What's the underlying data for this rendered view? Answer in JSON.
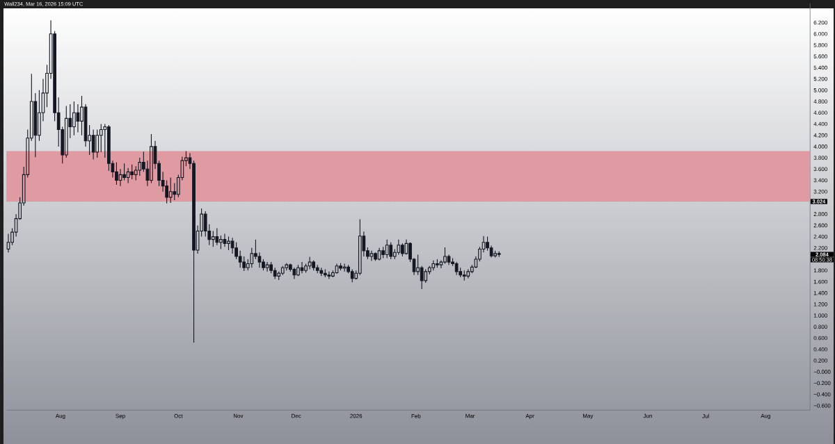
{
  "chart_data": {
    "type": "candlestick",
    "annotations": [
      "Wall234, Mar 16, 2026 15:09 UTC",
      "2.084",
      "08:50:38"
    ],
    "color": "#131722",
    "x": [
      "2025-07-05",
      "2025-07-07",
      "2025-07-09",
      "2025-07-11",
      "2025-07-13",
      "2025-07-15",
      "2025-07-17",
      "2025-07-19",
      "2025-07-21",
      "2025-07-23",
      "2025-07-25",
      "2025-07-27",
      "2025-07-29",
      "2025-07-31",
      "2025-08-02",
      "2025-08-04",
      "2025-08-06",
      "2025-08-08",
      "2025-08-10",
      "2025-08-12",
      "2025-08-14",
      "2025-08-16",
      "2025-08-18",
      "2025-08-20",
      "2025-08-22",
      "2025-08-24",
      "2025-08-26",
      "2025-08-28",
      "2025-08-30",
      "2025-09-01",
      "2025-09-03",
      "2025-09-05",
      "2025-09-07",
      "2025-09-09",
      "2025-09-11",
      "2025-09-13",
      "2025-09-15",
      "2025-09-17",
      "2025-09-19",
      "2025-09-21",
      "2025-09-23",
      "2025-09-25",
      "2025-09-27",
      "2025-09-29",
      "2025-10-01",
      "2025-10-03",
      "2025-10-05",
      "2025-10-07",
      "2025-10-09",
      "2025-10-11",
      "2025-10-13",
      "2025-10-15",
      "2025-10-17",
      "2025-10-19",
      "2025-10-21",
      "2025-10-23",
      "2025-10-25",
      "2025-10-27",
      "2025-10-29",
      "2025-10-31",
      "2025-11-02",
      "2025-11-04",
      "2025-11-06",
      "2025-11-08",
      "2025-11-10",
      "2025-11-12",
      "2025-11-14",
      "2025-11-16",
      "2025-11-18",
      "2025-11-20",
      "2025-11-22",
      "2025-11-24",
      "2025-11-26",
      "2025-11-28",
      "2025-11-30",
      "2025-12-02",
      "2025-12-04",
      "2025-12-06",
      "2025-12-08",
      "2025-12-10",
      "2025-12-12",
      "2025-12-14",
      "2025-12-16",
      "2025-12-18",
      "2025-12-20",
      "2025-12-22",
      "2025-12-24",
      "2025-12-26",
      "2025-12-28",
      "2025-12-30",
      "2026-01-01",
      "2026-01-03",
      "2026-01-05",
      "2026-01-07",
      "2026-01-09",
      "2026-01-11",
      "2026-01-13",
      "2026-01-15",
      "2026-01-17",
      "2026-01-19",
      "2026-01-21",
      "2026-01-23",
      "2026-01-25",
      "2026-01-27",
      "2026-01-29",
      "2026-01-31",
      "2026-02-02",
      "2026-02-04",
      "2026-02-06",
      "2026-02-08",
      "2026-02-10",
      "2026-02-12",
      "2026-02-14",
      "2026-02-16",
      "2026-02-18",
      "2026-02-20",
      "2026-02-22",
      "2026-02-24",
      "2026-02-26",
      "2026-02-28",
      "2026-03-02",
      "2026-03-04",
      "2026-03-06",
      "2026-03-08",
      "2026-03-10",
      "2026-03-12",
      "2026-03-14",
      "2026-03-16"
    ],
    "ohlc": [
      [
        2.18,
        2.45,
        2.12,
        2.3
      ],
      [
        2.3,
        2.55,
        2.25,
        2.48
      ],
      [
        2.48,
        2.8,
        2.4,
        2.72
      ],
      [
        2.72,
        3.1,
        2.7,
        3.0
      ],
      [
        3.0,
        3.64,
        2.95,
        3.5
      ],
      [
        3.5,
        4.3,
        3.45,
        4.15
      ],
      [
        4.15,
        5.29,
        4.1,
        4.8
      ],
      [
        4.8,
        4.95,
        3.81,
        4.2
      ],
      [
        4.2,
        5.0,
        4.1,
        4.6
      ],
      [
        4.6,
        5.2,
        4.45,
        4.95
      ],
      [
        4.95,
        5.45,
        4.7,
        5.3
      ],
      [
        5.3,
        6.24,
        5.2,
        6.0
      ],
      [
        6.0,
        6.05,
        4.45,
        4.6
      ],
      [
        4.6,
        4.87,
        4.0,
        4.3
      ],
      [
        4.3,
        4.35,
        3.7,
        3.85
      ],
      [
        3.85,
        4.72,
        3.8,
        4.5
      ],
      [
        4.5,
        4.75,
        4.15,
        4.35
      ],
      [
        4.35,
        4.8,
        4.2,
        4.6
      ],
      [
        4.6,
        4.75,
        4.25,
        4.45
      ],
      [
        4.45,
        4.9,
        4.2,
        4.7
      ],
      [
        4.7,
        4.75,
        4.0,
        4.1
      ],
      [
        4.1,
        4.38,
        3.85,
        4.2
      ],
      [
        4.2,
        4.3,
        3.77,
        3.9
      ],
      [
        3.9,
        4.3,
        3.8,
        4.2
      ],
      [
        4.2,
        4.4,
        3.9,
        4.3
      ],
      [
        4.3,
        4.4,
        3.8,
        4.35
      ],
      [
        4.35,
        4.38,
        3.57,
        3.7
      ],
      [
        3.7,
        3.75,
        3.45,
        3.55
      ],
      [
        3.55,
        3.72,
        3.32,
        3.4
      ],
      [
        3.4,
        3.6,
        3.3,
        3.5
      ],
      [
        3.5,
        3.7,
        3.4,
        3.45
      ],
      [
        3.45,
        3.62,
        3.35,
        3.55
      ],
      [
        3.55,
        3.68,
        3.42,
        3.5
      ],
      [
        3.5,
        3.65,
        3.4,
        3.58
      ],
      [
        3.58,
        3.8,
        3.48,
        3.72
      ],
      [
        3.72,
        3.91,
        3.55,
        3.6
      ],
      [
        3.6,
        3.75,
        3.3,
        3.4
      ],
      [
        3.4,
        4.22,
        3.35,
        4.0
      ],
      [
        4.0,
        4.1,
        3.6,
        3.7
      ],
      [
        3.7,
        3.75,
        3.3,
        3.4
      ],
      [
        3.4,
        3.55,
        3.2,
        3.3
      ],
      [
        3.3,
        3.4,
        2.99,
        3.1
      ],
      [
        3.1,
        3.45,
        3.0,
        3.2
      ],
      [
        3.2,
        3.35,
        3.05,
        3.15
      ],
      [
        3.15,
        3.5,
        3.1,
        3.45
      ],
      [
        3.45,
        3.82,
        3.4,
        3.75
      ],
      [
        3.75,
        3.92,
        3.65,
        3.8
      ],
      [
        3.8,
        3.88,
        3.6,
        3.7
      ],
      [
        3.7,
        3.75,
        0.52,
        2.16
      ],
      [
        2.16,
        2.6,
        2.1,
        2.5
      ],
      [
        2.5,
        2.9,
        2.4,
        2.8
      ],
      [
        2.8,
        2.85,
        2.4,
        2.5
      ],
      [
        2.5,
        2.62,
        2.25,
        2.35
      ],
      [
        2.35,
        2.5,
        2.22,
        2.4
      ],
      [
        2.4,
        2.55,
        2.25,
        2.3
      ],
      [
        2.3,
        2.42,
        2.18,
        2.35
      ],
      [
        2.35,
        2.45,
        2.22,
        2.28
      ],
      [
        2.28,
        2.4,
        2.16,
        2.32
      ],
      [
        2.32,
        2.38,
        2.1,
        2.2
      ],
      [
        2.2,
        2.3,
        2.0,
        2.05
      ],
      [
        2.05,
        2.15,
        1.85,
        1.95
      ],
      [
        1.95,
        2.05,
        1.79,
        1.85
      ],
      [
        1.85,
        2.0,
        1.8,
        1.92
      ],
      [
        1.92,
        2.2,
        1.85,
        2.1
      ],
      [
        2.1,
        2.35,
        2.0,
        2.05
      ],
      [
        2.05,
        2.12,
        1.85,
        1.95
      ],
      [
        1.95,
        2.0,
        1.8,
        1.85
      ],
      [
        1.85,
        1.95,
        1.78,
        1.9
      ],
      [
        1.9,
        1.95,
        1.75,
        1.8
      ],
      [
        1.8,
        1.85,
        1.65,
        1.7
      ],
      [
        1.7,
        1.78,
        1.63,
        1.75
      ],
      [
        1.75,
        1.88,
        1.72,
        1.85
      ],
      [
        1.85,
        1.93,
        1.8,
        1.9
      ],
      [
        1.9,
        1.92,
        1.78,
        1.82
      ],
      [
        1.82,
        1.85,
        1.65,
        1.72
      ],
      [
        1.72,
        1.9,
        1.7,
        1.85
      ],
      [
        1.85,
        1.95,
        1.75,
        1.8
      ],
      [
        1.8,
        1.92,
        1.76,
        1.88
      ],
      [
        1.88,
        2.04,
        1.82,
        1.95
      ],
      [
        1.95,
        1.98,
        1.8,
        1.85
      ],
      [
        1.85,
        1.9,
        1.75,
        1.8
      ],
      [
        1.8,
        1.85,
        1.7,
        1.75
      ],
      [
        1.75,
        1.82,
        1.68,
        1.72
      ],
      [
        1.72,
        1.78,
        1.65,
        1.7
      ],
      [
        1.7,
        1.8,
        1.68,
        1.76
      ],
      [
        1.76,
        1.92,
        1.74,
        1.88
      ],
      [
        1.88,
        1.93,
        1.8,
        1.84
      ],
      [
        1.84,
        1.92,
        1.78,
        1.86
      ],
      [
        1.86,
        1.9,
        1.75,
        1.78
      ],
      [
        1.78,
        1.82,
        1.59,
        1.66
      ],
      [
        1.66,
        1.8,
        1.64,
        1.75
      ],
      [
        1.75,
        2.71,
        1.72,
        2.41
      ],
      [
        2.41,
        2.49,
        2.05,
        2.15
      ],
      [
        2.15,
        2.21,
        2.0,
        2.05
      ],
      [
        2.05,
        2.15,
        1.97,
        2.1
      ],
      [
        2.1,
        2.12,
        1.97,
        2.0
      ],
      [
        2.0,
        2.2,
        1.98,
        2.15
      ],
      [
        2.15,
        2.22,
        2.02,
        2.08
      ],
      [
        2.08,
        2.35,
        2.02,
        2.25
      ],
      [
        2.25,
        2.3,
        2.0,
        2.05
      ],
      [
        2.05,
        2.18,
        2.0,
        2.12
      ],
      [
        2.12,
        2.35,
        2.08,
        2.25
      ],
      [
        2.25,
        2.28,
        2.05,
        2.1
      ],
      [
        2.1,
        2.35,
        2.08,
        2.28
      ],
      [
        2.28,
        2.3,
        1.95,
        2.0
      ],
      [
        2.0,
        2.02,
        1.72,
        1.78
      ],
      [
        1.78,
        2.08,
        1.72,
        1.85
      ],
      [
        1.85,
        1.88,
        1.47,
        1.62
      ],
      [
        1.62,
        1.82,
        1.58,
        1.78
      ],
      [
        1.78,
        1.88,
        1.73,
        1.85
      ],
      [
        1.85,
        1.98,
        1.8,
        1.92
      ],
      [
        1.92,
        2.0,
        1.85,
        1.9
      ],
      [
        1.9,
        1.98,
        1.84,
        1.95
      ],
      [
        1.95,
        2.21,
        1.92,
        2.05
      ],
      [
        2.05,
        2.08,
        1.9,
        1.95
      ],
      [
        1.95,
        2.02,
        1.88,
        1.92
      ],
      [
        1.92,
        1.95,
        1.72,
        1.78
      ],
      [
        1.78,
        1.85,
        1.68,
        1.72
      ],
      [
        1.72,
        1.8,
        1.62,
        1.7
      ],
      [
        1.7,
        1.82,
        1.66,
        1.78
      ],
      [
        1.78,
        1.9,
        1.75,
        1.86
      ],
      [
        1.86,
        2.05,
        1.84,
        2.0
      ],
      [
        2.0,
        2.22,
        1.96,
        2.18
      ],
      [
        2.18,
        2.41,
        2.12,
        2.3
      ],
      [
        2.3,
        2.4,
        2.15,
        2.2
      ],
      [
        2.2,
        2.24,
        2.03,
        2.06
      ],
      [
        2.06,
        2.15,
        2.03,
        2.1
      ],
      [
        2.1,
        2.14,
        2.04,
        2.084
      ]
    ],
    "xlim": [
      "2025-07-04",
      "2026-08-24"
    ],
    "xticks": [
      {
        "value": "2025-08-01",
        "label": "Aug"
      },
      {
        "value": "2025-09-01",
        "label": "Sep"
      },
      {
        "value": "2025-10-01",
        "label": "Oct"
      },
      {
        "value": "2025-11-01",
        "label": "Nov"
      },
      {
        "value": "2025-12-01",
        "label": "Dec"
      },
      {
        "value": "2026-01-01",
        "label": "2026"
      },
      {
        "value": "2026-02-01",
        "label": "Feb"
      },
      {
        "value": "2026-03-01",
        "label": "Mar"
      },
      {
        "value": "2026-04-01",
        "label": "Apr"
      },
      {
        "value": "2026-05-01",
        "label": "May"
      },
      {
        "value": "2026-06-01",
        "label": "Jun"
      },
      {
        "value": "2026-07-01",
        "label": "Jul"
      },
      {
        "value": "2026-08-01",
        "label": "Aug"
      }
    ],
    "ylim": [
      -0.68,
      6.54
    ],
    "yticks": [
      {
        "value": -0.6,
        "label": "−0.600"
      },
      {
        "value": -0.4,
        "label": "−0.400"
      },
      {
        "value": -0.2,
        "label": "−0.200"
      },
      {
        "value": 0,
        "label": "−0.000"
      },
      {
        "value": 0.2,
        "label": "0.200"
      },
      {
        "value": 0.4,
        "label": "0.400"
      },
      {
        "value": 0.6,
        "label": "0.600"
      },
      {
        "value": 0.8,
        "label": "0.800"
      },
      {
        "value": 1.0,
        "label": "1.000"
      },
      {
        "value": 1.2,
        "label": "1.200"
      },
      {
        "value": 1.4,
        "label": "1.400"
      },
      {
        "value": 1.6,
        "label": "1.600"
      },
      {
        "value": 1.8,
        "label": "1.800"
      },
      {
        "value": 2.2,
        "label": "2.200"
      },
      {
        "value": 2.4,
        "label": "2.400"
      },
      {
        "value": 2.6,
        "label": "2.600"
      },
      {
        "value": 2.8,
        "label": "2.800"
      },
      {
        "value": 3.2,
        "label": "3.200"
      },
      {
        "value": 3.4,
        "label": "3.400"
      },
      {
        "value": 3.6,
        "label": "3.600"
      },
      {
        "value": 3.8,
        "label": "3.800"
      },
      {
        "value": 4.0,
        "label": "4.000"
      },
      {
        "value": 4.2,
        "label": "4.200"
      },
      {
        "value": 4.4,
        "label": "4.400"
      },
      {
        "value": 4.6,
        "label": "4.600"
      },
      {
        "value": 4.8,
        "label": "4.800"
      },
      {
        "value": 5.0,
        "label": "5.000"
      },
      {
        "value": 5.2,
        "label": "5.200"
      },
      {
        "value": 5.4,
        "label": "5.400"
      },
      {
        "value": 5.6,
        "label": "5.600"
      },
      {
        "value": 5.8,
        "label": "5.800"
      },
      {
        "value": 6.0,
        "label": "6.000"
      },
      {
        "value": 6.2,
        "label": "6.200"
      }
    ],
    "bands": [
      {
        "axis": "y",
        "from": 3.024,
        "to": 3.92,
        "color": "#df9aa2"
      }
    ],
    "ref_lines": [
      {
        "axis": "y",
        "value": 3.024,
        "label": "3.024",
        "line_style": "dotted",
        "color": "#787b86"
      }
    ]
  }
}
